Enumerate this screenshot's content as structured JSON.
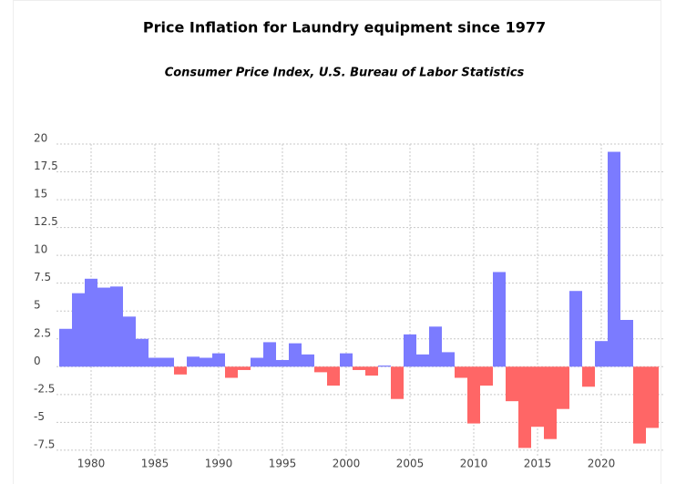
{
  "chart_data": {
    "type": "bar",
    "title": "Price Inflation for Laundry equipment since 1977",
    "subtitle": "Consumer Price Index, U.S. Bureau of Labor Statistics",
    "x": [
      1978,
      1979,
      1980,
      1981,
      1982,
      1983,
      1984,
      1985,
      1986,
      1987,
      1988,
      1989,
      1990,
      1991,
      1992,
      1993,
      1994,
      1995,
      1996,
      1997,
      1998,
      1999,
      2000,
      2001,
      2002,
      2003,
      2004,
      2005,
      2006,
      2007,
      2008,
      2009,
      2010,
      2011,
      2012,
      2013,
      2014,
      2015,
      2016,
      2017,
      2018,
      2019,
      2020,
      2021,
      2022,
      2023,
      2024
    ],
    "values": [
      3.4,
      6.6,
      7.9,
      7.1,
      7.2,
      4.5,
      2.5,
      0.8,
      0.8,
      -0.7,
      0.9,
      0.8,
      1.2,
      -1.0,
      -0.3,
      0.8,
      2.2,
      0.6,
      2.1,
      1.1,
      -0.5,
      -1.7,
      1.2,
      -0.3,
      -0.8,
      0.1,
      -2.9,
      2.9,
      1.1,
      3.6,
      1.3,
      -1.0,
      -5.1,
      -1.7,
      8.5,
      -3.1,
      -7.3,
      -5.4,
      -6.5,
      -3.8,
      6.8,
      -1.8,
      2.3,
      19.3,
      4.2,
      -6.9,
      -5.5
    ],
    "positive_color": "#7b7bff",
    "negative_color": "#ff6666",
    "xlim": [
      1977.5,
      2024.5
    ],
    "xticks": [
      1980,
      1985,
      1990,
      1995,
      2000,
      2005,
      2010,
      2015,
      2020
    ],
    "ylim": [
      -8,
      20
    ],
    "yticks": [
      -7.5,
      -5,
      -2.5,
      0,
      2.5,
      5,
      7.5,
      10,
      12.5,
      15,
      17.5,
      20
    ],
    "grid": true
  }
}
